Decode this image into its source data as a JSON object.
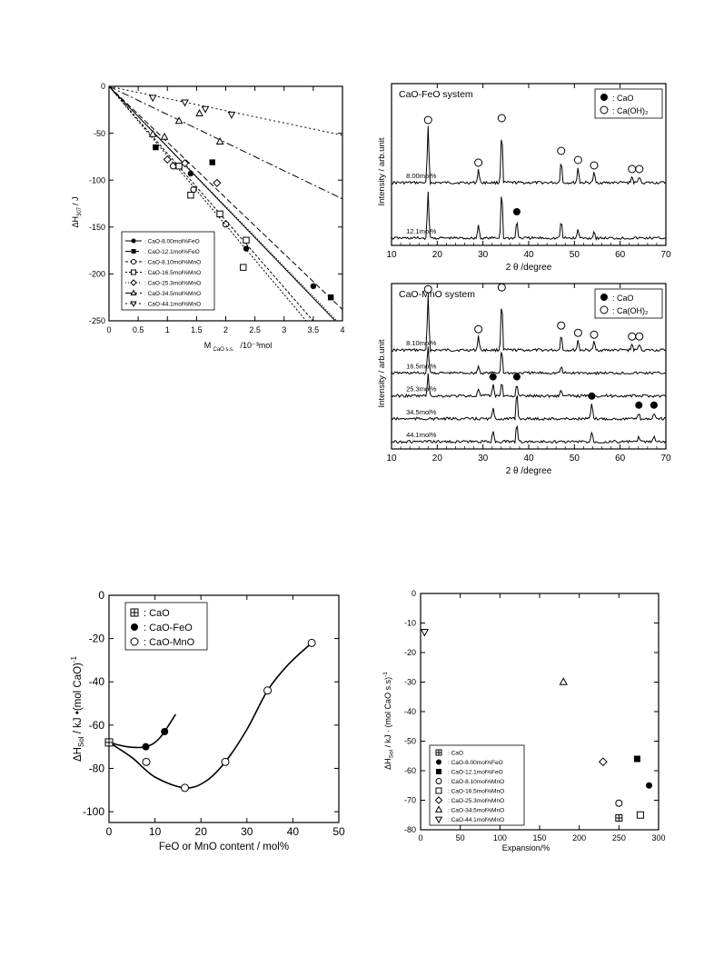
{
  "chart_data": [
    {
      "id": "dh_vs_mcao",
      "type": "scatter",
      "xlabel_main": "M",
      "xlabel_sub": "CaO s.s.",
      "xlabel_tail": "/10⁻³mol",
      "ylabel_main": "ΔH",
      "ylabel_sub": "307",
      "ylabel_tail": " / J",
      "xlim": [
        0,
        4
      ],
      "ylim": [
        -250,
        0
      ],
      "x_ticks": [
        "0",
        "0.5",
        "1",
        "1.5",
        "2",
        "2.5",
        "3",
        "3.5",
        "4"
      ],
      "y_ticks": [
        "0",
        "-50",
        "-100",
        "-150",
        "-200",
        "-250"
      ],
      "legend_position": "bottom-left",
      "series": [
        {
          "name": ": CaO-8.00mol%FeO",
          "marker": "circle-filled",
          "dash": "",
          "slope": -64.5,
          "points": [
            [
              1.4,
              -93
            ],
            [
              2.35,
              -173
            ],
            [
              3.5,
              -213
            ]
          ]
        },
        {
          "name": ": CaO-12.1mol%FeO",
          "marker": "square-filled",
          "dash": "6,3",
          "slope": -59.5,
          "points": [
            [
              0.8,
              -65
            ],
            [
              1.77,
              -81
            ],
            [
              3.8,
              -225
            ]
          ]
        },
        {
          "name": ": CaO-8.10mol%MnO",
          "marker": "circle-open",
          "dash": "3,2",
          "slope": -71.5,
          "points": [
            [
              1.1,
              -85
            ],
            [
              1.45,
              -110
            ],
            [
              2.0,
              -147
            ]
          ]
        },
        {
          "name": ": CaO-16.5mol%MnO",
          "marker": "square-open",
          "dash": "2,2",
          "slope": -74.0,
          "points": [
            [
              1.2,
              -85
            ],
            [
              1.4,
              -116
            ],
            [
              1.9,
              -136
            ],
            [
              2.35,
              -164
            ],
            [
              2.3,
              -193
            ]
          ]
        },
        {
          "name": ": CaO-25.3mol%MnO",
          "marker": "diamond-open",
          "dash": "1,2",
          "slope": -64.0,
          "points": [
            [
              1.0,
              -78
            ],
            [
              1.3,
              -82
            ],
            [
              1.85,
              -103
            ]
          ]
        },
        {
          "name": ": CaO-34.5mol%MnO",
          "marker": "triangle-open",
          "dash": "8,3,2,3",
          "slope": -30.0,
          "points": [
            [
              1.2,
              -37
            ],
            [
              0.75,
              -51
            ],
            [
              0.95,
              -54
            ],
            [
              1.55,
              -29
            ],
            [
              1.9,
              -59
            ]
          ]
        },
        {
          "name": ": CaO-44.1mol%MnO",
          "marker": "triangledown-open",
          "dash": "2,3",
          "slope": -13.0,
          "points": [
            [
              0.75,
              -12
            ],
            [
              1.3,
              -17
            ],
            [
              1.65,
              -24
            ],
            [
              2.1,
              -30
            ]
          ]
        }
      ]
    },
    {
      "id": "xrd_feo",
      "type": "line",
      "title": "CaO-FeO system",
      "xlabel": "2 θ /degree",
      "ylabel": "Intensity / arb.unit",
      "xlim": [
        10,
        70
      ],
      "x_ticks": [
        "10",
        "20",
        "30",
        "40",
        "50",
        "60",
        "70"
      ],
      "legend": [
        {
          "marker": "circle-filled",
          "label": ": CaO"
        },
        {
          "marker": "circle-open",
          "label": ": Ca(OH)₂"
        }
      ],
      "traces": [
        {
          "label": "8.00mol%",
          "peaks": [
            [
              18,
              62,
              "o"
            ],
            [
              29,
              15,
              "o"
            ],
            [
              34.1,
              64,
              "o"
            ],
            [
              47.1,
              28,
              "o"
            ],
            [
              50.8,
              18,
              "o"
            ],
            [
              54.3,
              12,
              "o"
            ],
            [
              62.6,
              8,
              "o"
            ],
            [
              64.2,
              8,
              "o"
            ]
          ]
        },
        {
          "label": "12.1mol%",
          "peaks": [
            [
              18,
              52,
              ""
            ],
            [
              29,
              15,
              ""
            ],
            [
              34.1,
              60,
              ""
            ],
            [
              37.4,
              22,
              "c"
            ],
            [
              47.1,
              22,
              ""
            ],
            [
              50.8,
              10,
              ""
            ],
            [
              54.3,
              8,
              ""
            ]
          ]
        }
      ]
    },
    {
      "id": "xrd_mno",
      "type": "line",
      "title": "CaO-MnO system",
      "xlabel": "2 θ /degree",
      "ylabel": "Intensity / arb.unit",
      "xlim": [
        10,
        70
      ],
      "x_ticks": [
        "10",
        "20",
        "30",
        "40",
        "50",
        "60",
        "70"
      ],
      "legend": [
        {
          "marker": "circle-filled",
          "label": ": CaO"
        },
        {
          "marker": "circle-open",
          "label": ": Ca(OH)₂"
        }
      ],
      "traces": [
        {
          "label": "8.10mol%",
          "peaks": [
            [
              18,
              60,
              "o"
            ],
            [
              29,
              16,
              "o"
            ],
            [
              34.1,
              62,
              "o"
            ],
            [
              47.1,
              20,
              "o"
            ],
            [
              50.8,
              12,
              "o"
            ],
            [
              54.3,
              10,
              "o"
            ],
            [
              62.6,
              8,
              "o"
            ],
            [
              64.2,
              8,
              "o"
            ]
          ]
        },
        {
          "label": "16.5mol%",
          "peaks": [
            [
              18,
              30,
              ""
            ],
            [
              29,
              8,
              ""
            ],
            [
              34.1,
              30,
              ""
            ],
            [
              47.1,
              8,
              ""
            ]
          ]
        },
        {
          "label": "25.3mol%",
          "peaks": [
            [
              18,
              24,
              ""
            ],
            [
              29,
              8,
              ""
            ],
            [
              32.2,
              14,
              "c"
            ],
            [
              34.1,
              18,
              ""
            ],
            [
              37.4,
              14,
              "c"
            ],
            [
              47.1,
              8,
              ""
            ]
          ]
        },
        {
          "label": "34.5mol%",
          "peaks": [
            [
              32.2,
              12,
              ""
            ],
            [
              37.4,
              34,
              ""
            ],
            [
              53.8,
              18,
              "c"
            ],
            [
              64.1,
              8,
              "c"
            ],
            [
              67.4,
              8,
              "c"
            ]
          ]
        },
        {
          "label": "44.1mol%",
          "peaks": [
            [
              32.2,
              14,
              ""
            ],
            [
              37.4,
              22,
              ""
            ],
            [
              53.8,
              12,
              ""
            ],
            [
              64.1,
              6,
              ""
            ],
            [
              67.4,
              6,
              ""
            ]
          ]
        }
      ]
    },
    {
      "id": "dhsol_vs_content",
      "type": "scatter",
      "xlabel": "FeO or MnO content / mol%",
      "ylabel": "ΔH_Sol / kJ •(mol CaO)⁻¹",
      "ylabel_main": "ΔH",
      "ylabel_sub": "Sol",
      "ylabel_tail": " / kJ •(mol CaO)",
      "ylabel_sup": "-1",
      "xlim": [
        0,
        50
      ],
      "ylim": [
        -105,
        0
      ],
      "x_ticks": [
        "0",
        "10",
        "20",
        "30",
        "40",
        "50"
      ],
      "y_ticks": [
        "0",
        "-20",
        "-40",
        "-60",
        "-80",
        "-100"
      ],
      "legend_position": "top-left",
      "series": [
        {
          "name": ": CaO",
          "marker": "square-cross",
          "points": [
            [
              0,
              -68
            ]
          ]
        },
        {
          "name": ": CaO-FeO",
          "marker": "circle-filled",
          "points": [
            [
              8,
              -70
            ],
            [
              12.1,
              -63
            ]
          ],
          "curve": [
            [
              0,
              -68
            ],
            [
              4,
              -70
            ],
            [
              8,
              -70
            ],
            [
              11,
              -66
            ],
            [
              14.5,
              -55
            ]
          ]
        },
        {
          "name": ": CaO-MnO",
          "marker": "circle-open",
          "points": [
            [
              8.1,
              -77
            ],
            [
              16.5,
              -89
            ],
            [
              25.3,
              -77
            ],
            [
              34.5,
              -44
            ],
            [
              44.1,
              -22
            ]
          ],
          "curve": [
            [
              0,
              -68
            ],
            [
              5,
              -75
            ],
            [
              10,
              -84
            ],
            [
              16.5,
              -89
            ],
            [
              21,
              -86
            ],
            [
              25.3,
              -77
            ],
            [
              30,
              -62
            ],
            [
              34.5,
              -44
            ],
            [
              39,
              -32
            ],
            [
              44.1,
              -22
            ]
          ]
        }
      ]
    },
    {
      "id": "dhsol_vs_expansion",
      "type": "scatter",
      "xlabel": "Expansion/%",
      "ylabel_main": "ΔH",
      "ylabel_sub": "Sol",
      "ylabel_tail": " / kJ · (mol CaO s.s)",
      "ylabel_sup": "-1",
      "xlim": [
        0,
        300
      ],
      "ylim": [
        -80,
        0
      ],
      "x_ticks": [
        "0",
        "50",
        "100",
        "150",
        "200",
        "250",
        "300"
      ],
      "y_ticks": [
        "0",
        "-10",
        "-20",
        "-30",
        "-40",
        "-50",
        "-60",
        "-70",
        "-80"
      ],
      "legend_position": "bottom-left",
      "series": [
        {
          "name": ": CaO",
          "marker": "square-cross",
          "points": [
            [
              250,
              -76
            ]
          ]
        },
        {
          "name": ": CaO-8.00mol%FeO",
          "marker": "circle-filled",
          "points": [
            [
              288,
              -65
            ]
          ]
        },
        {
          "name": ": CaO-12.1mol%FeO",
          "marker": "square-filled",
          "points": [
            [
              273,
              -56
            ]
          ]
        },
        {
          "name": ": CaO-8.10mol%MnO",
          "marker": "circle-open",
          "points": [
            [
              250,
              -71
            ]
          ]
        },
        {
          "name": ": CaO-16.5mol%MnO",
          "marker": "square-open",
          "points": [
            [
              277,
              -75
            ]
          ]
        },
        {
          "name": ": CaO-25.3mol%MnO",
          "marker": "diamond-open",
          "points": [
            [
              230,
              -57
            ]
          ]
        },
        {
          "name": ": CaO-34.5mol%MnO",
          "marker": "triangle-open",
          "points": [
            [
              180,
              -30
            ]
          ]
        },
        {
          "name": ": CaO-44.1mol%MnO",
          "marker": "triangledown-open",
          "points": [
            [
              5,
              -13
            ]
          ]
        }
      ]
    }
  ]
}
